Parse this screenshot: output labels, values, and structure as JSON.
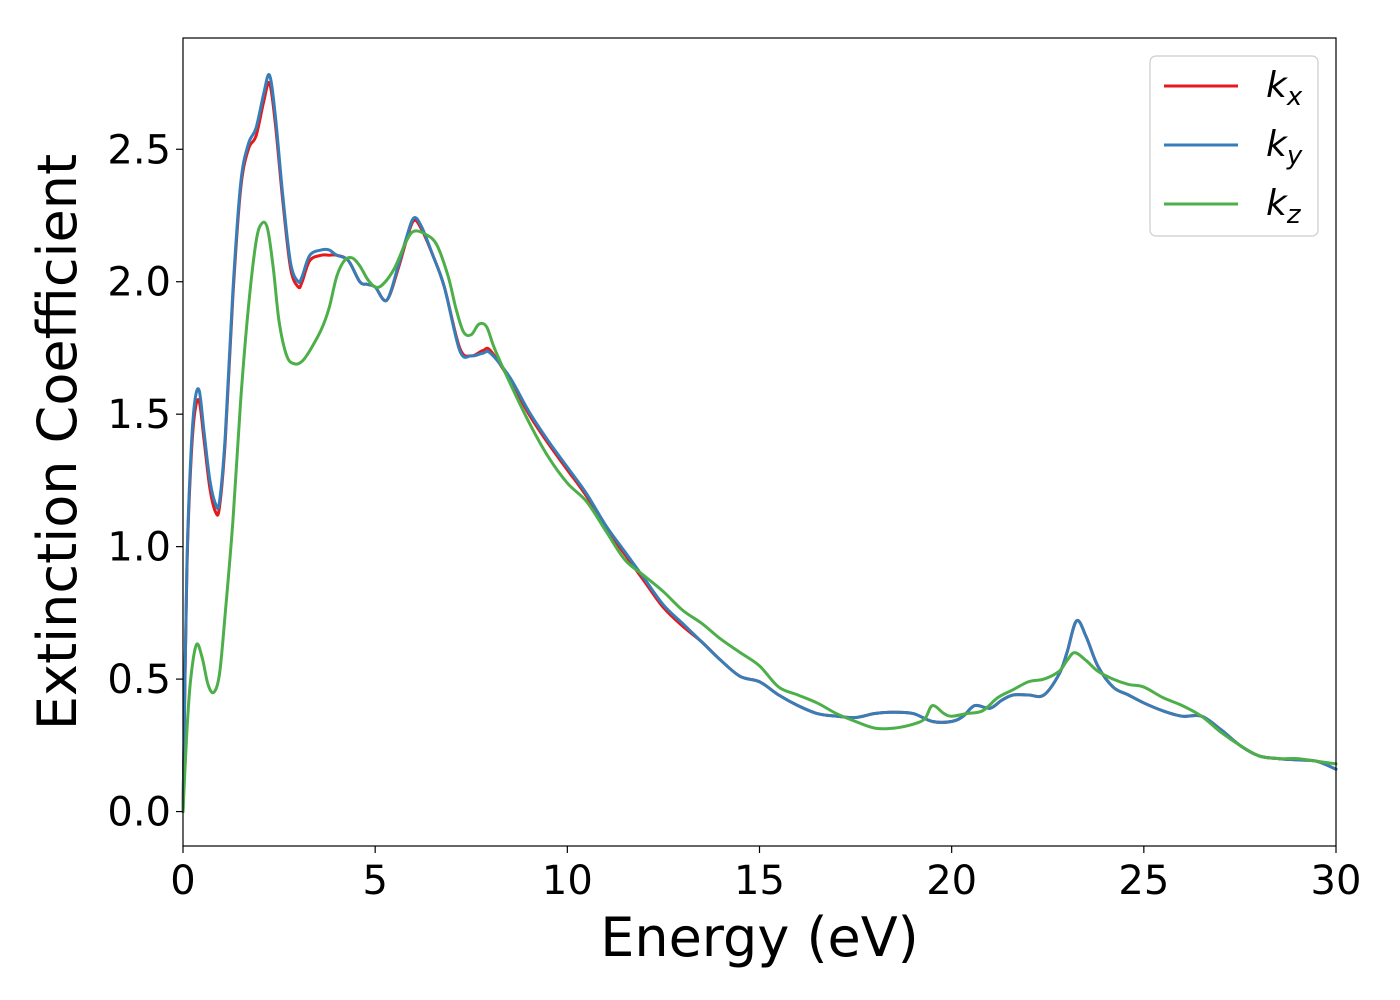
{
  "chart_data": {
    "type": "line",
    "title": "",
    "xlabel": "Energy (eV)",
    "ylabel": "Extinction Coefficient",
    "xlim": [
      0,
      30
    ],
    "ylim": [
      -0.13,
      2.92
    ],
    "xticks": [
      "0",
      "5",
      "10",
      "15",
      "20",
      "25",
      "30"
    ],
    "yticks": [
      "0.0",
      "0.5",
      "1.0",
      "1.5",
      "2.0",
      "2.5"
    ],
    "grid": false,
    "legend_position": "top-right",
    "series": [
      {
        "name": "k_x",
        "label_main": "k",
        "label_sub": "x",
        "color": "#e41a1c",
        "x": [
          0,
          0.1,
          0.2,
          0.3,
          0.42,
          0.55,
          0.7,
          0.85,
          0.95,
          1.1,
          1.3,
          1.5,
          1.7,
          1.9,
          2.1,
          2.25,
          2.4,
          2.6,
          2.8,
          3.0,
          3.1,
          3.3,
          3.6,
          3.8,
          4.0,
          4.3,
          4.6,
          4.8,
          5.0,
          5.3,
          5.6,
          5.8,
          6.0,
          6.2,
          6.5,
          6.8,
          7.2,
          7.5,
          7.8,
          8.0,
          8.5,
          9.0,
          9.5,
          10.0,
          10.5,
          11.0,
          11.5,
          12.0,
          12.5,
          13.0,
          13.5,
          14.0,
          14.5,
          15.0,
          15.5,
          16.0,
          16.5,
          17.0,
          17.5,
          18.0,
          18.5,
          19.0,
          19.5,
          20.0,
          20.3,
          20.6,
          21.0,
          21.3,
          21.6,
          22.0,
          22.4,
          22.8,
          23.0,
          23.25,
          23.5,
          23.8,
          24.2,
          24.6,
          25.0,
          25.5,
          26.0,
          26.5,
          27.0,
          27.5,
          28.0,
          28.5,
          29.0,
          29.5,
          30.0
        ],
        "values": [
          0.0,
          0.9,
          1.3,
          1.5,
          1.55,
          1.4,
          1.22,
          1.13,
          1.15,
          1.4,
          1.95,
          2.35,
          2.5,
          2.55,
          2.68,
          2.75,
          2.6,
          2.3,
          2.05,
          1.98,
          2.0,
          2.08,
          2.1,
          2.1,
          2.1,
          2.08,
          2.0,
          1.99,
          1.98,
          1.93,
          2.05,
          2.15,
          2.23,
          2.2,
          2.1,
          1.98,
          1.75,
          1.72,
          1.74,
          1.74,
          1.63,
          1.5,
          1.39,
          1.29,
          1.19,
          1.07,
          0.97,
          0.87,
          0.77,
          0.7,
          0.64,
          0.57,
          0.51,
          0.49,
          0.44,
          0.4,
          0.37,
          0.36,
          0.355,
          0.37,
          0.375,
          0.37,
          0.34,
          0.34,
          0.36,
          0.4,
          0.39,
          0.42,
          0.44,
          0.44,
          0.44,
          0.52,
          0.6,
          0.72,
          0.66,
          0.55,
          0.47,
          0.44,
          0.41,
          0.38,
          0.36,
          0.36,
          0.31,
          0.25,
          0.21,
          0.2,
          0.195,
          0.19,
          0.16
        ]
      },
      {
        "name": "k_y",
        "label_main": "k",
        "label_sub": "y",
        "color": "#377eb8",
        "x": [
          0,
          0.1,
          0.2,
          0.3,
          0.42,
          0.55,
          0.7,
          0.85,
          0.95,
          1.1,
          1.3,
          1.5,
          1.7,
          1.9,
          2.1,
          2.25,
          2.4,
          2.6,
          2.8,
          3.0,
          3.1,
          3.3,
          3.6,
          3.8,
          4.0,
          4.3,
          4.6,
          4.8,
          5.0,
          5.3,
          5.6,
          5.8,
          6.0,
          6.2,
          6.5,
          6.8,
          7.2,
          7.5,
          7.8,
          8.0,
          8.5,
          9.0,
          9.5,
          10.0,
          10.5,
          11.0,
          11.5,
          12.0,
          12.5,
          13.0,
          13.5,
          14.0,
          14.5,
          15.0,
          15.5,
          16.0,
          16.5,
          17.0,
          17.5,
          18.0,
          18.5,
          19.0,
          19.5,
          20.0,
          20.3,
          20.6,
          21.0,
          21.3,
          21.6,
          22.0,
          22.4,
          22.8,
          23.0,
          23.25,
          23.5,
          23.8,
          24.2,
          24.6,
          25.0,
          25.5,
          26.0,
          26.5,
          27.0,
          27.5,
          28.0,
          28.5,
          29.0,
          29.5,
          30.0
        ],
        "values": [
          0.0,
          0.92,
          1.33,
          1.54,
          1.59,
          1.43,
          1.25,
          1.16,
          1.17,
          1.42,
          1.97,
          2.37,
          2.52,
          2.58,
          2.71,
          2.78,
          2.63,
          2.32,
          2.07,
          2.0,
          2.02,
          2.1,
          2.12,
          2.12,
          2.1,
          2.08,
          2.0,
          1.99,
          1.98,
          1.93,
          2.06,
          2.16,
          2.24,
          2.21,
          2.1,
          1.98,
          1.74,
          1.72,
          1.73,
          1.73,
          1.64,
          1.51,
          1.4,
          1.3,
          1.2,
          1.08,
          0.98,
          0.88,
          0.78,
          0.71,
          0.64,
          0.57,
          0.51,
          0.49,
          0.44,
          0.4,
          0.37,
          0.36,
          0.355,
          0.37,
          0.375,
          0.37,
          0.34,
          0.34,
          0.36,
          0.4,
          0.39,
          0.42,
          0.44,
          0.44,
          0.44,
          0.52,
          0.6,
          0.72,
          0.66,
          0.55,
          0.47,
          0.44,
          0.41,
          0.38,
          0.36,
          0.36,
          0.31,
          0.25,
          0.21,
          0.2,
          0.195,
          0.19,
          0.16
        ]
      },
      {
        "name": "k_z",
        "label_main": "k",
        "label_sub": "z",
        "color": "#4daf4a",
        "x": [
          0,
          0.1,
          0.2,
          0.35,
          0.5,
          0.65,
          0.8,
          0.95,
          1.1,
          1.3,
          1.5,
          1.7,
          1.9,
          2.05,
          2.2,
          2.35,
          2.5,
          2.7,
          2.9,
          3.1,
          3.3,
          3.6,
          3.8,
          4.0,
          4.2,
          4.4,
          4.6,
          4.8,
          5.0,
          5.2,
          5.5,
          5.8,
          6.0,
          6.3,
          6.6,
          6.9,
          7.1,
          7.3,
          7.5,
          7.7,
          7.9,
          8.1,
          8.5,
          9.0,
          9.5,
          10.0,
          10.5,
          11.0,
          11.5,
          12.0,
          12.5,
          13.0,
          13.5,
          14.0,
          14.5,
          15.0,
          15.5,
          16.0,
          16.5,
          17.0,
          17.5,
          18.0,
          18.5,
          19.0,
          19.3,
          19.5,
          19.8,
          20.0,
          20.4,
          20.8,
          21.2,
          21.6,
          22.0,
          22.4,
          22.8,
          23.0,
          23.2,
          23.5,
          23.8,
          24.2,
          24.6,
          25.0,
          25.5,
          26.0,
          26.5,
          27.0,
          27.5,
          28.0,
          28.5,
          29.0,
          29.5,
          30.0
        ],
        "values": [
          0.0,
          0.3,
          0.5,
          0.63,
          0.58,
          0.48,
          0.45,
          0.52,
          0.75,
          1.1,
          1.55,
          1.9,
          2.15,
          2.22,
          2.2,
          2.05,
          1.85,
          1.72,
          1.69,
          1.7,
          1.74,
          1.82,
          1.9,
          2.02,
          2.08,
          2.09,
          2.06,
          2.01,
          1.98,
          1.99,
          2.05,
          2.15,
          2.19,
          2.18,
          2.14,
          2.02,
          1.9,
          1.81,
          1.8,
          1.84,
          1.83,
          1.75,
          1.62,
          1.47,
          1.34,
          1.24,
          1.17,
          1.06,
          0.95,
          0.89,
          0.83,
          0.76,
          0.71,
          0.65,
          0.6,
          0.55,
          0.47,
          0.44,
          0.41,
          0.37,
          0.34,
          0.315,
          0.315,
          0.33,
          0.35,
          0.4,
          0.37,
          0.36,
          0.37,
          0.38,
          0.43,
          0.46,
          0.49,
          0.5,
          0.53,
          0.57,
          0.6,
          0.57,
          0.53,
          0.5,
          0.48,
          0.47,
          0.43,
          0.4,
          0.36,
          0.3,
          0.25,
          0.21,
          0.2,
          0.2,
          0.19,
          0.18
        ]
      }
    ]
  }
}
